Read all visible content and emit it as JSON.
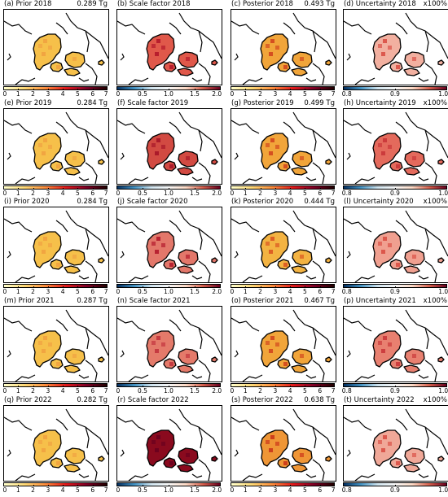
{
  "figure": {
    "years": [
      "2018",
      "2019",
      "2020",
      "2021",
      "2022"
    ],
    "columns": [
      {
        "key": "prior",
        "colormap": "YlOrRd",
        "colors": [
          "#ffffcc",
          "#fed976",
          "#fd8d3c",
          "#e31a1c",
          "#800026",
          "#200000"
        ],
        "ticks": [
          "0",
          "1",
          "2",
          "3",
          "4",
          "5",
          "6",
          "7"
        ],
        "tick_values": [
          0,
          1,
          2,
          3,
          4,
          5,
          6,
          7
        ],
        "range": [
          0,
          7
        ]
      },
      {
        "key": "scale",
        "colormap": "RdBu_r",
        "colors": [
          "#053061",
          "#4393c3",
          "#d1e5f0",
          "#f7f7f7",
          "#fddbc7",
          "#d6604d",
          "#67001f"
        ],
        "ticks": [
          "0",
          "0.5",
          "1.0",
          "1.5",
          "2.0"
        ],
        "tick_values": [
          0,
          0.5,
          1.0,
          1.5,
          2.0
        ],
        "range": [
          0,
          2
        ]
      },
      {
        "key": "posterior",
        "colormap": "YlOrRd",
        "colors": [
          "#ffffcc",
          "#fed976",
          "#fd8d3c",
          "#e31a1c",
          "#800026",
          "#200000"
        ],
        "ticks": [
          "0",
          "1",
          "2",
          "3",
          "4",
          "5",
          "6",
          "7"
        ],
        "tick_values": [
          0,
          1,
          2,
          3,
          4,
          5,
          6,
          7
        ],
        "range": [
          0,
          7
        ]
      },
      {
        "key": "uncertainty",
        "colormap": "RdBu_r",
        "colors": [
          "#053061",
          "#4393c3",
          "#d1e5f0",
          "#f7f7f7",
          "#fddbc7",
          "#d6604d",
          "#67001f"
        ],
        "ticks": [
          "0.8",
          "0.9",
          "1.0"
        ],
        "tick_values": [
          0.8,
          0.9,
          1.0
        ],
        "range": [
          0.8,
          1.0
        ]
      }
    ],
    "panels": [
      {
        "label": "(a) Prior 2018",
        "right": "0.289 Tg",
        "fill": "#f6c04a",
        "hot": "#f0a040"
      },
      {
        "label": "(b) Scale factor 2018",
        "right": "",
        "fill": "#e0584a",
        "hot": "#b01428"
      },
      {
        "label": "(c) Posterior 2018",
        "right": "0.493 Tg",
        "fill": "#f1a53a",
        "hot": "#d0401c"
      },
      {
        "label": "(d) Uncertainty 2018",
        "right": "x100%",
        "fill": "#f2b0a0",
        "hot": "#d84a40"
      },
      {
        "label": "(e) Prior 2019",
        "right": "0.284 Tg",
        "fill": "#f6c04a",
        "hot": "#f0a040"
      },
      {
        "label": "(f) Scale factor 2019",
        "right": "",
        "fill": "#d24a42",
        "hot": "#a51226"
      },
      {
        "label": "(g) Posterior 2019",
        "right": "0.499 Tg",
        "fill": "#f1a53a",
        "hot": "#d0401c"
      },
      {
        "label": "(h) Uncertainty 2019",
        "right": "x100%",
        "fill": "#e46a5c",
        "hot": "#c83236"
      },
      {
        "label": "(i) Prior 2020",
        "right": "0.284 Tg",
        "fill": "#f6c04a",
        "hot": "#f0a040"
      },
      {
        "label": "(j) Scale factor 2020",
        "right": "",
        "fill": "#e3776a",
        "hot": "#b01428"
      },
      {
        "label": "(k) Posterior 2020",
        "right": "0.444 Tg",
        "fill": "#f3b342",
        "hot": "#d8501e"
      },
      {
        "label": "(l) Uncertainty 2020",
        "right": "x100%",
        "fill": "#f0a090",
        "hot": "#d84a40"
      },
      {
        "label": "(m) Prior 2021",
        "right": "0.287 Tg",
        "fill": "#f6c04a",
        "hot": "#f0a040"
      },
      {
        "label": "(n) Scale factor 2021",
        "right": "",
        "fill": "#e47a6a",
        "hot": "#c0303a"
      },
      {
        "label": "(o) Posterior 2021",
        "right": "0.467 Tg",
        "fill": "#f1a53a",
        "hot": "#d0401c"
      },
      {
        "label": "(p) Uncertainty 2021",
        "right": "x100%",
        "fill": "#e88070",
        "hot": "#c83236"
      },
      {
        "label": "(q) Prior 2022",
        "right": "0.282 Tg",
        "fill": "#f6c04a",
        "hot": "#f0a040"
      },
      {
        "label": "(r) Scale factor 2022",
        "right": "",
        "fill": "#8a0a1e",
        "hot": "#67001f"
      },
      {
        "label": "(s) Posterior 2022",
        "right": "0.638 Tg",
        "fill": "#ef9636",
        "hot": "#c83018"
      },
      {
        "label": "(t) Uncertainty 2022",
        "right": "x100%",
        "fill": "#f0a898",
        "hot": "#d84a40"
      }
    ]
  }
}
